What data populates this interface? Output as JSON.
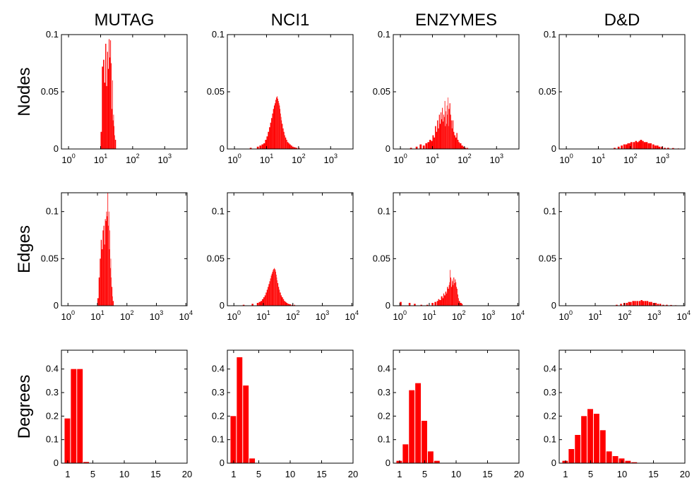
{
  "chart_data": {
    "type": "bar",
    "colors": {
      "bars": "#ff0000",
      "axes": "#000000",
      "background": "#ffffff"
    },
    "grid": false,
    "columns": [
      "MUTAG",
      "NCI1",
      "ENZYMES",
      "D&D"
    ],
    "rows": [
      {
        "key": "nodes",
        "label": "Nodes"
      },
      {
        "key": "edges",
        "label": "Edges"
      },
      {
        "key": "degrees",
        "label": "Degrees"
      }
    ],
    "axes": {
      "nodes": {
        "x_scale": "log",
        "xlim": [
          0.6,
          5000
        ],
        "x_ticks": [
          {
            "base": "10",
            "exp": "0"
          },
          {
            "base": "10",
            "exp": "1"
          },
          {
            "base": "10",
            "exp": "2"
          },
          {
            "base": "10",
            "exp": "3"
          }
        ],
        "ylim": [
          0,
          0.1
        ],
        "y_ticks": [
          "0",
          "0.05",
          "0.1"
        ]
      },
      "edges": {
        "x_scale": "log",
        "xlim": [
          0.6,
          11000
        ],
        "x_ticks": [
          {
            "base": "10",
            "exp": "0"
          },
          {
            "base": "10",
            "exp": "1"
          },
          {
            "base": "10",
            "exp": "2"
          },
          {
            "base": "10",
            "exp": "3"
          },
          {
            "base": "10",
            "exp": "4"
          }
        ],
        "ylim": [
          0,
          0.12
        ],
        "y_ticks": [
          "0",
          "0.05",
          "0.1"
        ]
      },
      "degrees": {
        "x_scale": "linear",
        "xlim": [
          0,
          20
        ],
        "x_ticks": [
          "1",
          "5",
          "10",
          "15",
          "20"
        ],
        "ylim": [
          0,
          0.48
        ],
        "y_ticks": [
          "0",
          "0.1",
          "0.2",
          "0.3",
          "0.4"
        ]
      }
    },
    "histograms": {
      "MUTAG": {
        "nodes": [
          [
            10,
            0.015
          ],
          [
            11,
            0.072
          ],
          [
            12,
            0.078
          ],
          [
            13,
            0.058
          ],
          [
            14,
            0.092
          ],
          [
            15,
            0.055
          ],
          [
            16,
            0.085
          ],
          [
            17,
            0.07
          ],
          [
            18,
            0.096
          ],
          [
            19,
            0.08
          ],
          [
            20,
            0.095
          ],
          [
            21,
            0.075
          ],
          [
            22,
            0.035
          ],
          [
            23,
            0.06
          ],
          [
            24,
            0.025
          ],
          [
            25,
            0.03
          ],
          [
            26,
            0.02
          ],
          [
            27,
            0.012
          ],
          [
            28,
            0.008
          ]
        ],
        "edges": [
          [
            10,
            0.008
          ],
          [
            11,
            0.03
          ],
          [
            12,
            0.05
          ],
          [
            13,
            0.07
          ],
          [
            14,
            0.06
          ],
          [
            15,
            0.08
          ],
          [
            16,
            0.085
          ],
          [
            17,
            0.065
          ],
          [
            18,
            0.092
          ],
          [
            19,
            0.09
          ],
          [
            20,
            0.1
          ],
          [
            21,
            0.095
          ],
          [
            22,
            0.12
          ],
          [
            23,
            0.085
          ],
          [
            24,
            0.1
          ],
          [
            25,
            0.06
          ],
          [
            26,
            0.08
          ],
          [
            27,
            0.04
          ],
          [
            28,
            0.05
          ],
          [
            29,
            0.03
          ],
          [
            30,
            0.02
          ],
          [
            32,
            0.01
          ],
          [
            33,
            0.005
          ]
        ],
        "degrees": [
          [
            1,
            0.19
          ],
          [
            2,
            0.4
          ],
          [
            3,
            0.4
          ],
          [
            4,
            0.005
          ]
        ]
      },
      "NCI1": {
        "nodes": [
          [
            3,
            0.001
          ],
          [
            5,
            0.002
          ],
          [
            6,
            0.003
          ],
          [
            7,
            0.004
          ],
          [
            8,
            0.005
          ],
          [
            9,
            0.008
          ],
          [
            10,
            0.011
          ],
          [
            11,
            0.015
          ],
          [
            12,
            0.019
          ],
          [
            13,
            0.023
          ],
          [
            14,
            0.027
          ],
          [
            15,
            0.031
          ],
          [
            16,
            0.035
          ],
          [
            17,
            0.038
          ],
          [
            18,
            0.04
          ],
          [
            19,
            0.043
          ],
          [
            20,
            0.045
          ],
          [
            21,
            0.046
          ],
          [
            22,
            0.044
          ],
          [
            23,
            0.042
          ],
          [
            24,
            0.04
          ],
          [
            25,
            0.038
          ],
          [
            26,
            0.035
          ],
          [
            27,
            0.031
          ],
          [
            28,
            0.028
          ],
          [
            29,
            0.025
          ],
          [
            30,
            0.022
          ],
          [
            32,
            0.018
          ],
          [
            34,
            0.015
          ],
          [
            36,
            0.012
          ],
          [
            38,
            0.01
          ],
          [
            41,
            0.008
          ],
          [
            44,
            0.006
          ],
          [
            48,
            0.005
          ],
          [
            52,
            0.004
          ],
          [
            57,
            0.003
          ],
          [
            63,
            0.002
          ],
          [
            70,
            0.0015
          ],
          [
            80,
            0.001
          ],
          [
            100,
            0.001
          ]
        ],
        "edges": [
          [
            2,
            0.001
          ],
          [
            4,
            0.002
          ],
          [
            6,
            0.003
          ],
          [
            7,
            0.004
          ],
          [
            8,
            0.005
          ],
          [
            9,
            0.007
          ],
          [
            10,
            0.009
          ],
          [
            11,
            0.011
          ],
          [
            12,
            0.014
          ],
          [
            13,
            0.017
          ],
          [
            14,
            0.02
          ],
          [
            15,
            0.023
          ],
          [
            16,
            0.026
          ],
          [
            17,
            0.029
          ],
          [
            18,
            0.032
          ],
          [
            19,
            0.034
          ],
          [
            20,
            0.036
          ],
          [
            21,
            0.038
          ],
          [
            22,
            0.039
          ],
          [
            23,
            0.04
          ],
          [
            24,
            0.039
          ],
          [
            25,
            0.038
          ],
          [
            26,
            0.036
          ],
          [
            27,
            0.033
          ],
          [
            28,
            0.03
          ],
          [
            29,
            0.027
          ],
          [
            30,
            0.024
          ],
          [
            32,
            0.02
          ],
          [
            34,
            0.017
          ],
          [
            36,
            0.014
          ],
          [
            39,
            0.011
          ],
          [
            42,
            0.009
          ],
          [
            46,
            0.007
          ],
          [
            50,
            0.005
          ],
          [
            55,
            0.004
          ],
          [
            60,
            0.003
          ],
          [
            66,
            0.002
          ],
          [
            75,
            0.0015
          ],
          [
            90,
            0.001
          ],
          [
            110,
            0.001
          ]
        ],
        "degrees": [
          [
            1,
            0.2
          ],
          [
            2,
            0.45
          ],
          [
            3,
            0.33
          ],
          [
            4,
            0.02
          ]
        ]
      },
      "ENZYMES": {
        "nodes": [
          [
            2,
            0.001
          ],
          [
            3,
            0.002
          ],
          [
            4,
            0.004
          ],
          [
            5,
            0.003
          ],
          [
            6,
            0.005
          ],
          [
            7,
            0.006
          ],
          [
            8,
            0.008
          ],
          [
            9,
            0.007
          ],
          [
            10,
            0.012
          ],
          [
            11,
            0.01
          ],
          [
            12,
            0.02
          ],
          [
            13,
            0.015
          ],
          [
            14,
            0.025
          ],
          [
            15,
            0.018
          ],
          [
            16,
            0.03
          ],
          [
            17,
            0.022
          ],
          [
            18,
            0.032
          ],
          [
            19,
            0.026
          ],
          [
            20,
            0.036
          ],
          [
            21,
            0.024
          ],
          [
            22,
            0.03
          ],
          [
            23,
            0.028
          ],
          [
            24,
            0.042
          ],
          [
            25,
            0.02
          ],
          [
            26,
            0.033
          ],
          [
            27,
            0.022
          ],
          [
            28,
            0.038
          ],
          [
            29,
            0.03
          ],
          [
            30,
            0.045
          ],
          [
            31,
            0.02
          ],
          [
            32,
            0.035
          ],
          [
            34,
            0.04
          ],
          [
            36,
            0.03
          ],
          [
            38,
            0.025
          ],
          [
            40,
            0.018
          ],
          [
            42,
            0.025
          ],
          [
            45,
            0.015
          ],
          [
            48,
            0.012
          ],
          [
            52,
            0.01
          ],
          [
            56,
            0.014
          ],
          [
            60,
            0.008
          ],
          [
            65,
            0.006
          ],
          [
            70,
            0.005
          ],
          [
            80,
            0.003
          ],
          [
            90,
            0.002
          ],
          [
            100,
            0.001
          ],
          [
            120,
            0.001
          ]
        ],
        "edges": [
          [
            1,
            0.004
          ],
          [
            2,
            0.003
          ],
          [
            3,
            0.002
          ],
          [
            5,
            0.001
          ],
          [
            8,
            0.001
          ],
          [
            12,
            0.003
          ],
          [
            15,
            0.004
          ],
          [
            18,
            0.005
          ],
          [
            20,
            0.007
          ],
          [
            22,
            0.006
          ],
          [
            25,
            0.01
          ],
          [
            28,
            0.008
          ],
          [
            30,
            0.013
          ],
          [
            32,
            0.011
          ],
          [
            35,
            0.015
          ],
          [
            38,
            0.013
          ],
          [
            40,
            0.02
          ],
          [
            43,
            0.018
          ],
          [
            46,
            0.022
          ],
          [
            48,
            0.025
          ],
          [
            50,
            0.038
          ],
          [
            52,
            0.03
          ],
          [
            55,
            0.02
          ],
          [
            58,
            0.028
          ],
          [
            60,
            0.026
          ],
          [
            63,
            0.022
          ],
          [
            66,
            0.03
          ],
          [
            70,
            0.024
          ],
          [
            74,
            0.028
          ],
          [
            78,
            0.025
          ],
          [
            82,
            0.02
          ],
          [
            86,
            0.018
          ],
          [
            90,
            0.012
          ],
          [
            95,
            0.008
          ],
          [
            100,
            0.005
          ],
          [
            110,
            0.003
          ],
          [
            125,
            0.002
          ]
        ],
        "degrees": [
          [
            1,
            0.01
          ],
          [
            2,
            0.08
          ],
          [
            3,
            0.31
          ],
          [
            4,
            0.34
          ],
          [
            5,
            0.18
          ],
          [
            6,
            0.05
          ],
          [
            7,
            0.01
          ]
        ]
      },
      "D&D": {
        "nodes": [
          [
            30,
            0.001
          ],
          [
            40,
            0.002
          ],
          [
            50,
            0.003
          ],
          [
            60,
            0.004
          ],
          [
            70,
            0.004
          ],
          [
            80,
            0.005
          ],
          [
            90,
            0.005
          ],
          [
            100,
            0.006
          ],
          [
            120,
            0.006
          ],
          [
            140,
            0.007
          ],
          [
            160,
            0.006
          ],
          [
            180,
            0.007
          ],
          [
            200,
            0.008
          ],
          [
            230,
            0.007
          ],
          [
            260,
            0.006
          ],
          [
            300,
            0.006
          ],
          [
            350,
            0.005
          ],
          [
            400,
            0.005
          ],
          [
            480,
            0.004
          ],
          [
            560,
            0.003
          ],
          [
            650,
            0.003
          ],
          [
            750,
            0.002
          ],
          [
            900,
            0.002
          ],
          [
            1100,
            0.001
          ],
          [
            1400,
            0.001
          ],
          [
            2000,
            0.0008
          ],
          [
            3000,
            0.0005
          ]
        ],
        "edges": [
          [
            50,
            0.001
          ],
          [
            70,
            0.002
          ],
          [
            90,
            0.003
          ],
          [
            110,
            0.003
          ],
          [
            130,
            0.004
          ],
          [
            150,
            0.004
          ],
          [
            180,
            0.005
          ],
          [
            210,
            0.005
          ],
          [
            250,
            0.005
          ],
          [
            300,
            0.005
          ],
          [
            350,
            0.006
          ],
          [
            400,
            0.005
          ],
          [
            470,
            0.005
          ],
          [
            550,
            0.005
          ],
          [
            650,
            0.004
          ],
          [
            750,
            0.004
          ],
          [
            900,
            0.003
          ],
          [
            1050,
            0.003
          ],
          [
            1250,
            0.002
          ],
          [
            1500,
            0.002
          ],
          [
            1900,
            0.001
          ],
          [
            2500,
            0.001
          ],
          [
            3500,
            0.0008
          ],
          [
            5000,
            0.0005
          ],
          [
            7000,
            0.0003
          ]
        ],
        "degrees": [
          [
            1,
            0.01
          ],
          [
            2,
            0.06
          ],
          [
            3,
            0.12
          ],
          [
            4,
            0.2
          ],
          [
            5,
            0.23
          ],
          [
            6,
            0.21
          ],
          [
            7,
            0.14
          ],
          [
            8,
            0.05
          ],
          [
            9,
            0.03
          ],
          [
            10,
            0.02
          ],
          [
            11,
            0.01
          ],
          [
            12,
            0.004
          ]
        ]
      }
    }
  }
}
